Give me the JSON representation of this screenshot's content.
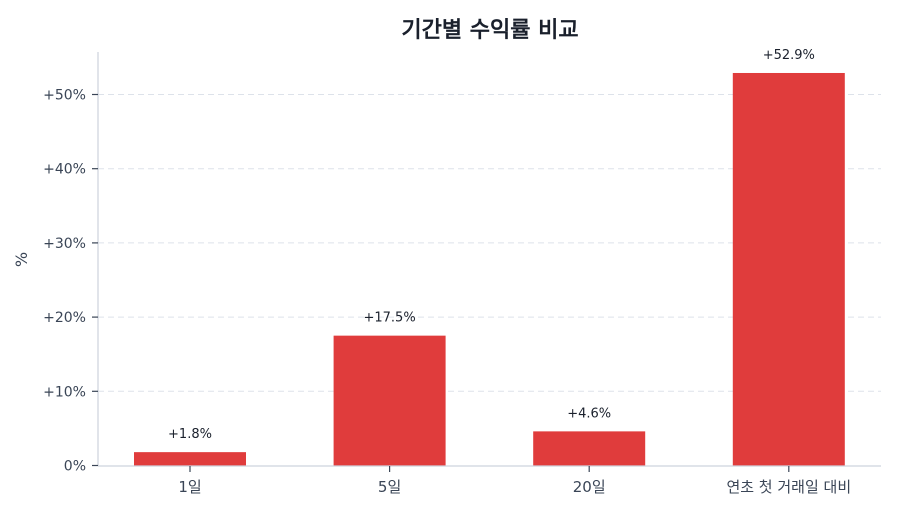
{
  "chart_data": {
    "type": "bar",
    "title": "기간별 수익률 비교",
    "xlabel": "",
    "ylabel": "%",
    "categories": [
      "1일",
      "5일",
      "20일",
      "연초 첫 거래일 대비"
    ],
    "values": [
      1.8,
      17.5,
      4.6,
      52.9
    ],
    "value_labels": [
      "+1.8%",
      "+17.5%",
      "+4.6%",
      "+52.9%"
    ],
    "ylim": [
      0,
      55.5
    ],
    "yticks": [
      0,
      10,
      20,
      30,
      40,
      50
    ],
    "ytick_labels": [
      "0%",
      "+10%",
      "+20%",
      "+30%",
      "+40%",
      "+50%"
    ],
    "grid": {
      "y": true,
      "style": "dashed"
    },
    "legend": null,
    "bar_color": "#e03c3c"
  }
}
